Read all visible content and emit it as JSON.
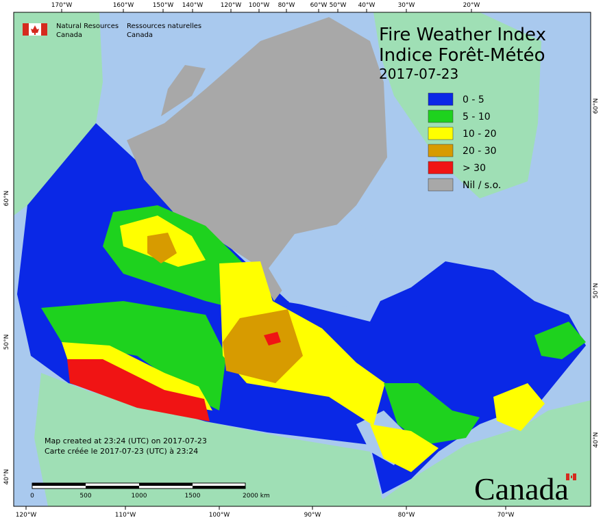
{
  "header": {
    "title": "Fire Weather Index",
    "title_fr": "Indice Forêt-Météo",
    "date": "2017-07-23",
    "agency": [
      "Natural Resources",
      "Canada"
    ],
    "agency_fr": [
      "Ressources naturelles",
      "Canada"
    ]
  },
  "legend": {
    "items": [
      {
        "label": "0 - 5",
        "color": "#0a28e6"
      },
      {
        "label": "5 - 10",
        "color": "#1ed21e"
      },
      {
        "label": "10 - 20",
        "color": "#ffff00"
      },
      {
        "label": "20 - 30",
        "color": "#d79b00"
      },
      {
        "label": "> 30",
        "color": "#f01414"
      },
      {
        "label": "Nil / s.o.",
        "color": "#a8a8a8"
      }
    ]
  },
  "graticule": {
    "top": [
      "170°W",
      "160°W",
      "150°W",
      "140°W",
      "120°W",
      "100°W",
      "80°W",
      "60°W",
      "50°W",
      "40°W",
      "30°W",
      "20°W"
    ],
    "bottom": [
      "120°W",
      "110°W",
      "100°W",
      "90°W",
      "80°W",
      "70°W"
    ],
    "left": [
      "60°N",
      "50°N",
      "40°N"
    ],
    "right": [
      "60°N",
      "50°N",
      "40°N"
    ]
  },
  "scale_bar": [
    "0",
    "500",
    "1000",
    "1500",
    "2000 km"
  ],
  "footer": [
    "Map created at 23:24 (UTC) on 2017-07-23",
    "Carte créée le 2017-07-23 (UTC) à 23:24"
  ],
  "wordmark": "Canada"
}
